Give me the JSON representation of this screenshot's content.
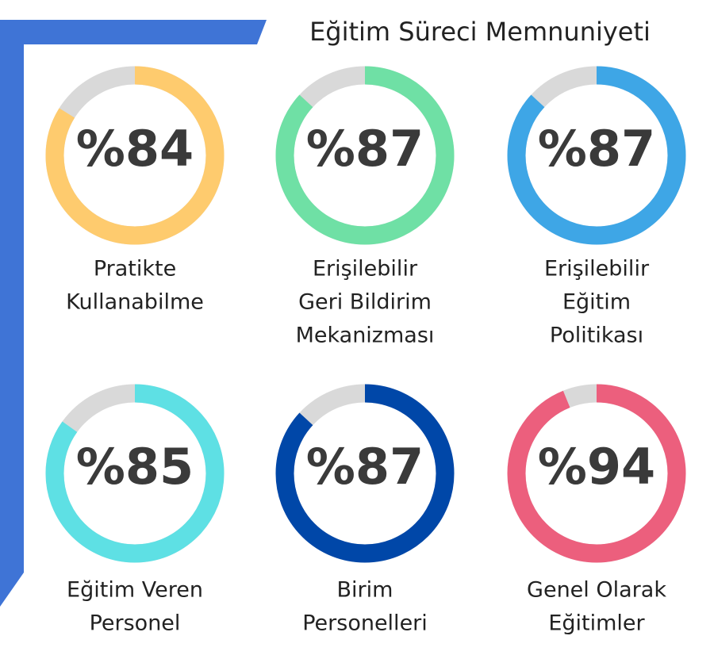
{
  "chart_data": {
    "type": "donut-gauge",
    "title": "Eğitim Süreci Memnuniyeti",
    "track_color": "#d9d9d9",
    "items": [
      {
        "label": [
          "Pratikte",
          "Kullanabilme"
        ],
        "value": 84,
        "value_label": "%84",
        "color": "#fecb6e"
      },
      {
        "label": [
          "Erişilebilir",
          "Geri Bildirim",
          "Mekanizması"
        ],
        "value": 87,
        "value_label": "%87",
        "color": "#6fe0a5"
      },
      {
        "label": [
          "Erişilebilir",
          "Eğitim",
          "Politikası"
        ],
        "value": 87,
        "value_label": "%87",
        "color": "#3ea6e6"
      },
      {
        "label": [
          "Eğitim Veren",
          "Personel"
        ],
        "value": 85,
        "value_label": "%85",
        "color": "#5ee0e4"
      },
      {
        "label": [
          "Birim",
          "Personelleri"
        ],
        "value": 87,
        "value_label": "%87",
        "color": "#0047a8"
      },
      {
        "label": [
          "Genel Olarak",
          "Eğitimler"
        ],
        "value": 94,
        "value_label": "%94",
        "color": "#ec5f7d"
      }
    ]
  }
}
